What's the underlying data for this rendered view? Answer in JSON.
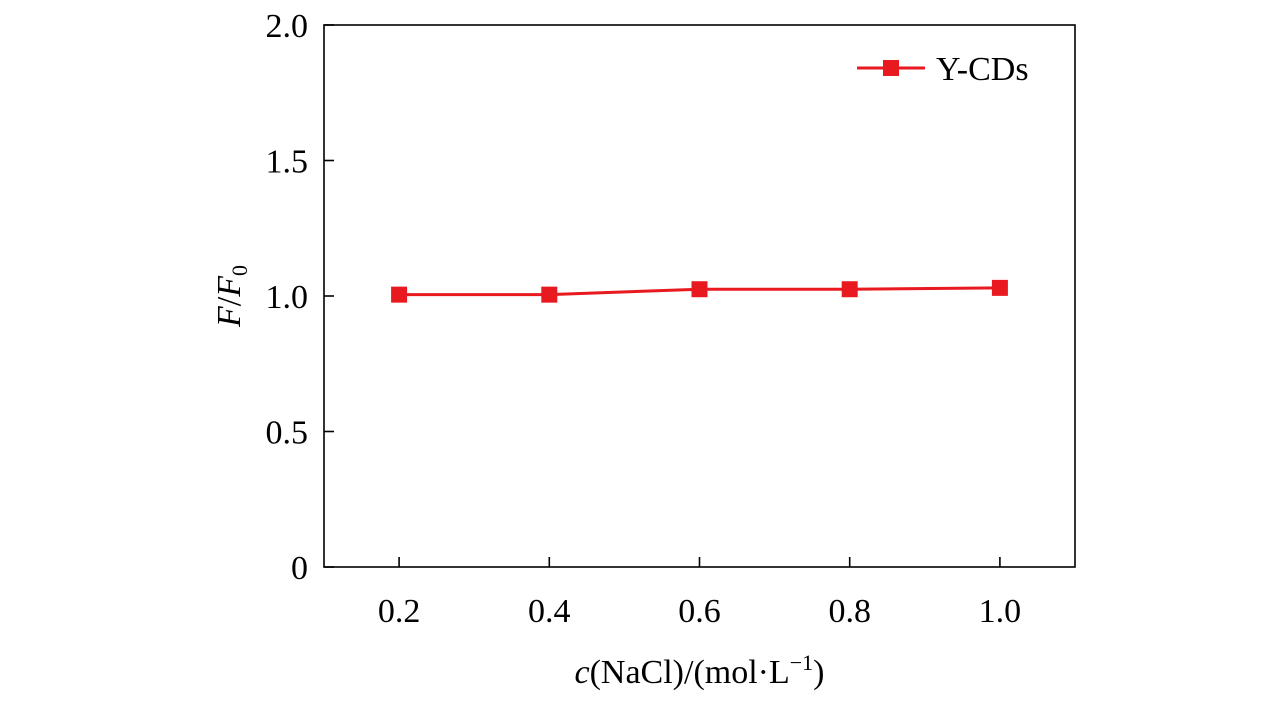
{
  "chart_data": {
    "type": "line",
    "title": "",
    "xlabel": {
      "var": "c",
      "text": "(NaCl)/(mol·L",
      "sup": "−1",
      "close": ")"
    },
    "ylabel": {
      "num": "F",
      "slash": "/",
      "den": "F",
      "sub": "0"
    },
    "xlim": [
      0.1,
      1.1
    ],
    "ylim": [
      0,
      2.0
    ],
    "x_ticks": [
      0.2,
      0.4,
      0.6,
      0.8,
      1.0
    ],
    "x_tick_labels": [
      "0.2",
      "0.4",
      "0.6",
      "0.8",
      "1.0"
    ],
    "y_ticks": [
      0,
      0.5,
      1.0,
      1.5,
      2.0
    ],
    "y_tick_labels": [
      "0",
      "0.5",
      "1.0",
      "1.5",
      "2.0"
    ],
    "grid": false,
    "legend_position": "top-right",
    "series": [
      {
        "name": "Y-CDs",
        "color": "#e8191f",
        "marker": "square",
        "x": [
          0.2,
          0.4,
          0.6,
          0.8,
          1.0
        ],
        "y": [
          1.005,
          1.005,
          1.025,
          1.025,
          1.03
        ]
      }
    ]
  }
}
